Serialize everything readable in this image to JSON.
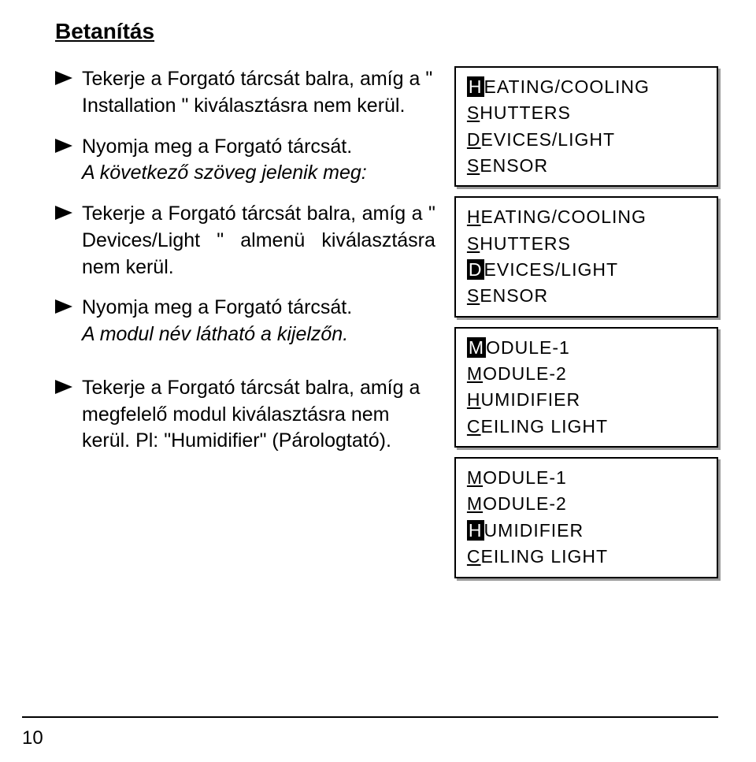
{
  "title": "Betanítás",
  "steps": [
    {
      "text": "Tekerje a Forgató tárcsát balra, amíg a \" Installation \" kiválasztásra nem kerül.",
      "italic": false
    },
    {
      "text": "Nyomja meg a Forgató tárcsát.",
      "text2": "A következő szöveg jelenik meg:",
      "italic2": true
    },
    {
      "text": "Tekerje a Forgató tárcsát balra, amíg a \" Devices/Light \" almenü kiválasztásra nem kerül.",
      "italic": false,
      "justify": true
    },
    {
      "text": "Nyomja meg a Forgató tárcsát.",
      "text2": "A modul név látható a kijelzőn.",
      "italic2": true
    },
    {
      "text": "Tekerje a Forgató tárcsát balra, amíg a megfelelő modul kiválasztásra nem kerül. Pl: \"Humidifier\" (Párologtató).",
      "italic": false
    }
  ],
  "displays": [
    {
      "lines": [
        {
          "prefix": "H",
          "prefixStyle": "inv",
          "rest": "EATING/COOLING"
        },
        {
          "prefix": "S",
          "prefixStyle": "u",
          "rest": "HUTTERS"
        },
        {
          "prefix": "D",
          "prefixStyle": "u",
          "rest": "EVICES/LIGHT"
        },
        {
          "prefix": "S",
          "prefixStyle": "u",
          "rest": "ENSOR"
        }
      ]
    },
    {
      "lines": [
        {
          "prefix": "H",
          "prefixStyle": "u",
          "rest": "EATING/COOLING"
        },
        {
          "prefix": "S",
          "prefixStyle": "u",
          "rest": "HUTTERS"
        },
        {
          "prefix": "D",
          "prefixStyle": "inv",
          "rest": "EVICES/LIGHT"
        },
        {
          "prefix": "S",
          "prefixStyle": "u",
          "rest": "ENSOR"
        }
      ]
    },
    {
      "lines": [
        {
          "prefix": "M",
          "prefixStyle": "inv",
          "rest": "ODULE-1"
        },
        {
          "prefix": "M",
          "prefixStyle": "u",
          "rest": "ODULE-2"
        },
        {
          "prefix": "H",
          "prefixStyle": "u",
          "rest": "UMIDIFIER"
        },
        {
          "prefix": "C",
          "prefixStyle": "u",
          "rest": "EILING LIGHT"
        }
      ]
    },
    {
      "lines": [
        {
          "prefix": "M",
          "prefixStyle": "u",
          "rest": "ODULE-1"
        },
        {
          "prefix": "M",
          "prefixStyle": "u",
          "rest": "ODULE-2"
        },
        {
          "prefix": "H",
          "prefixStyle": "inv",
          "rest": "UMIDIFIER"
        },
        {
          "prefix": "C",
          "prefixStyle": "u",
          "rest": "EILING LIGHT"
        }
      ]
    }
  ],
  "pageNumber": "10",
  "style": {
    "arrowFill": "#000000",
    "boxShadow": "#9a9a9a",
    "font": "Arial"
  }
}
